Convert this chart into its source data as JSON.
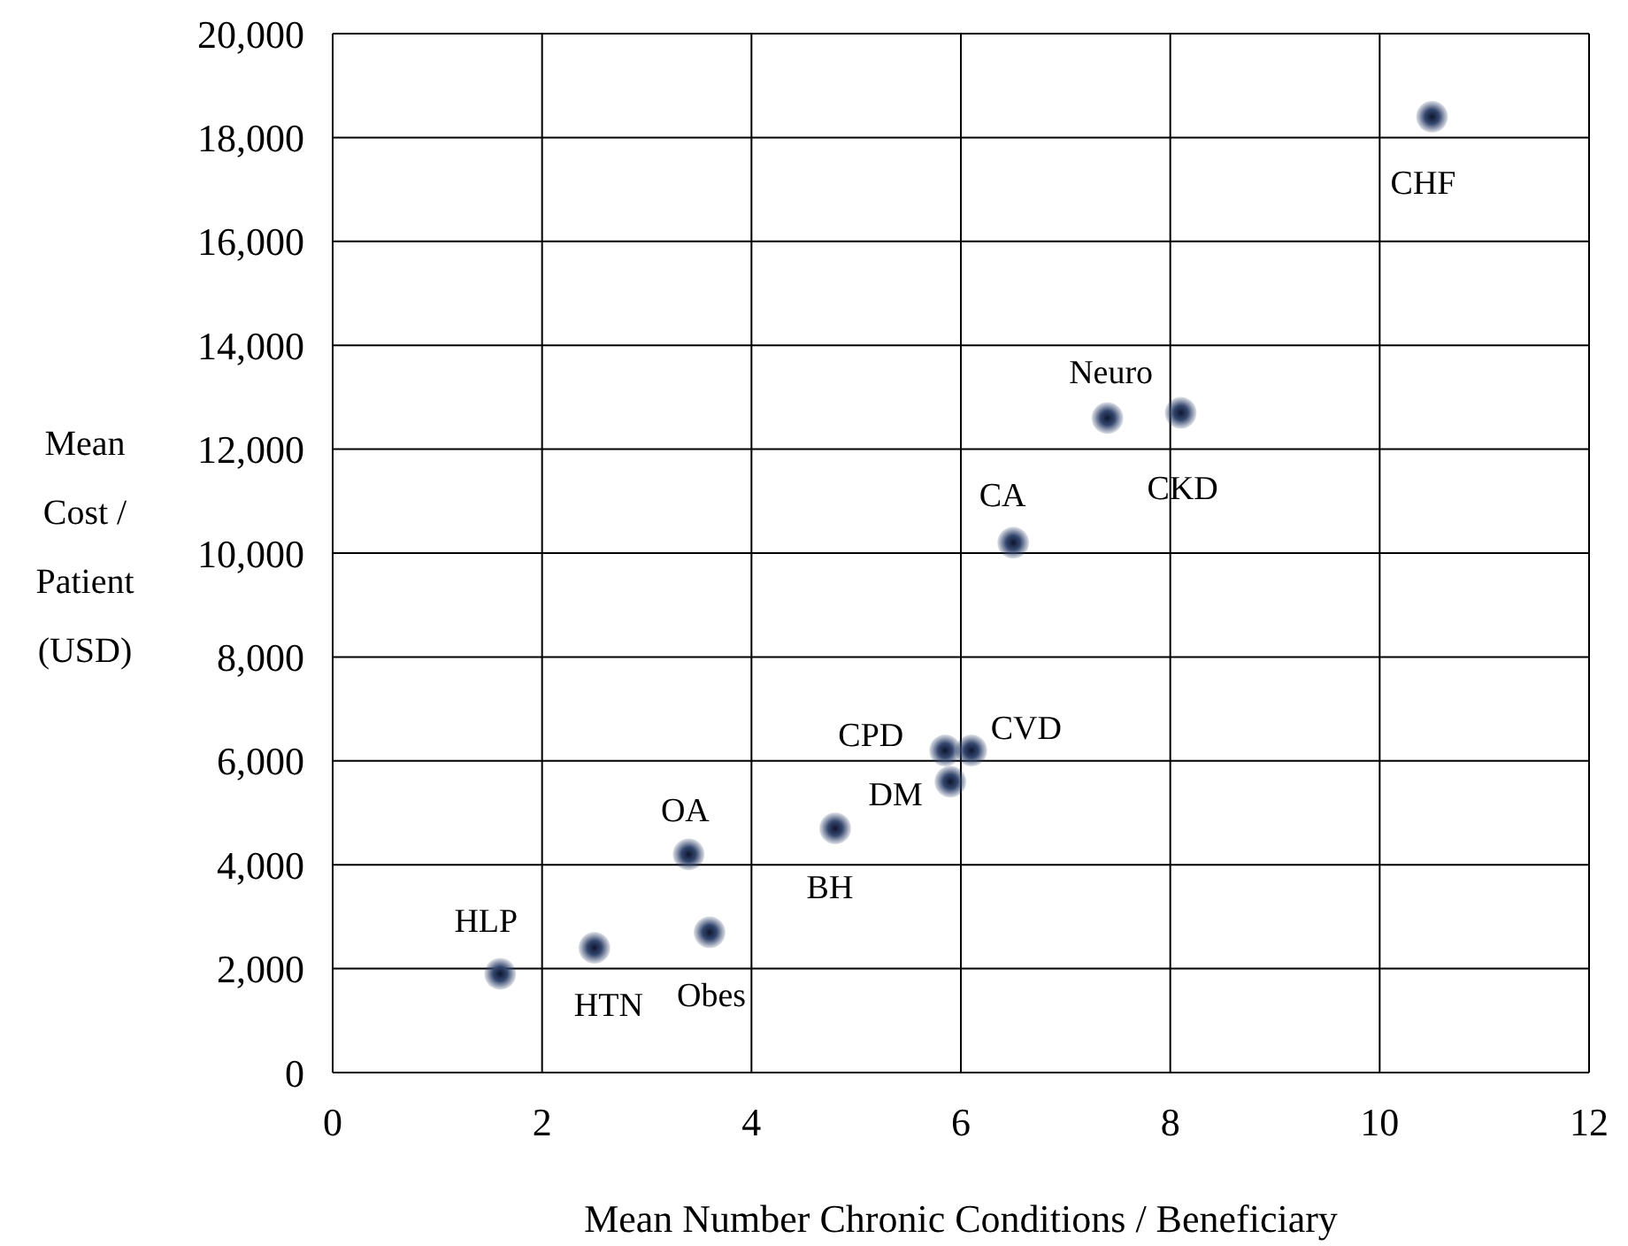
{
  "chart_data": {
    "type": "scatter",
    "xlabel": "Mean Number Chronic Conditions / Beneficiary",
    "ylabel": "Mean Cost / Patient (USD)",
    "x": [
      1.6,
      2.5,
      3.4,
      3.6,
      4.8,
      5.9,
      5.85,
      6.1,
      6.5,
      7.4,
      8.1,
      10.5
    ],
    "series": [
      {
        "color": "#34466e",
        "values": [
          1900,
          2400,
          4200,
          2700,
          4700,
          5600,
          6200,
          6200,
          10200,
          12600,
          12700,
          18400
        ]
      }
    ],
    "xlim": [
      0,
      12
    ],
    "xticks": [
      0,
      2,
      4,
      6,
      8,
      10,
      12
    ],
    "ylim": [
      0,
      20000
    ],
    "yticks": [
      {
        "value": 0,
        "label": "0"
      },
      {
        "value": 2000,
        "label": "2,000"
      },
      {
        "value": 4000,
        "label": "4,000"
      },
      {
        "value": 6000,
        "label": "6,000"
      },
      {
        "value": 8000,
        "label": "8,000"
      },
      {
        "value": 10000,
        "label": "10,000"
      },
      {
        "value": 12000,
        "label": "12,000"
      },
      {
        "value": 14000,
        "label": "14,000"
      },
      {
        "value": 16000,
        "label": "16,000"
      },
      {
        "value": 18000,
        "label": "18,000"
      },
      {
        "value": 20000,
        "label": "20,000"
      }
    ],
    "grid": true,
    "marker": "circle",
    "annotations": [
      {
        "text": "HLP",
        "x": 1.6,
        "y": 1900
      },
      {
        "text": "HTN",
        "x": 2.5,
        "y": 2400
      },
      {
        "text": "OA",
        "x": 3.4,
        "y": 4200
      },
      {
        "text": "Obes",
        "x": 3.6,
        "y": 2700
      },
      {
        "text": "BH",
        "x": 4.8,
        "y": 4700
      },
      {
        "text": "DM",
        "x": 5.9,
        "y": 5600
      },
      {
        "text": "CPD",
        "x": 5.85,
        "y": 6200
      },
      {
        "text": "CVD",
        "x": 6.1,
        "y": 6200
      },
      {
        "text": "CA",
        "x": 6.5,
        "y": 10200
      },
      {
        "text": "Neuro",
        "x": 7.4,
        "y": 12600
      },
      {
        "text": "CKD",
        "x": 8.1,
        "y": 12700
      },
      {
        "text": "CHF",
        "x": 10.5,
        "y": 18400
      }
    ]
  }
}
